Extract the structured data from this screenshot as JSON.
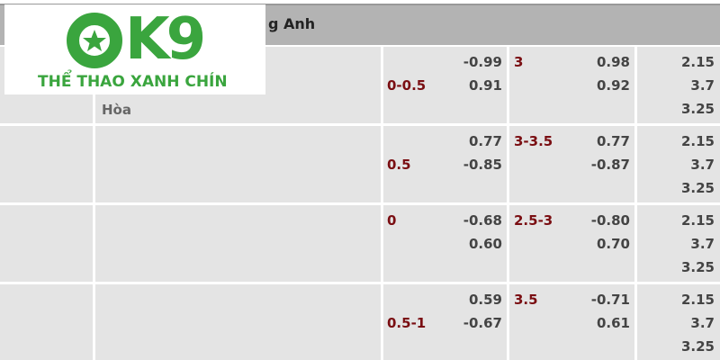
{
  "header": {
    "title": "g Anh"
  },
  "logo": {
    "text": "OK9",
    "tagline": "THỂ THAO XANH CHÍN",
    "color": "#3aa53e"
  },
  "draw_label": "Hòa",
  "rows": [
    {
      "hcap": "0-0.5",
      "hcap_odds": [
        "-0.99",
        "0.91"
      ],
      "ou": "3",
      "ou_odds": [
        "0.98",
        "0.92"
      ],
      "x12": [
        "2.15",
        "3.7",
        "3.25"
      ]
    },
    {
      "hcap": "0.5",
      "hcap_odds": [
        "0.77",
        "-0.85"
      ],
      "ou": "3-3.5",
      "ou_odds": [
        "0.77",
        "-0.87"
      ],
      "x12": [
        "2.15",
        "3.7",
        "3.25"
      ]
    },
    {
      "hcap": "0",
      "hcap_odds": [
        "-0.68",
        "0.60"
      ],
      "ou": "2.5-3",
      "ou_odds": [
        "-0.80",
        "0.70"
      ],
      "x12": [
        "2.15",
        "3.7",
        "3.25"
      ]
    },
    {
      "hcap": "0.5-1",
      "hcap_odds": [
        "0.59",
        "-0.67"
      ],
      "ou": "3.5",
      "ou_odds": [
        "-0.71",
        "0.61"
      ],
      "x12": [
        "2.15",
        "3.7",
        "3.25"
      ]
    }
  ]
}
